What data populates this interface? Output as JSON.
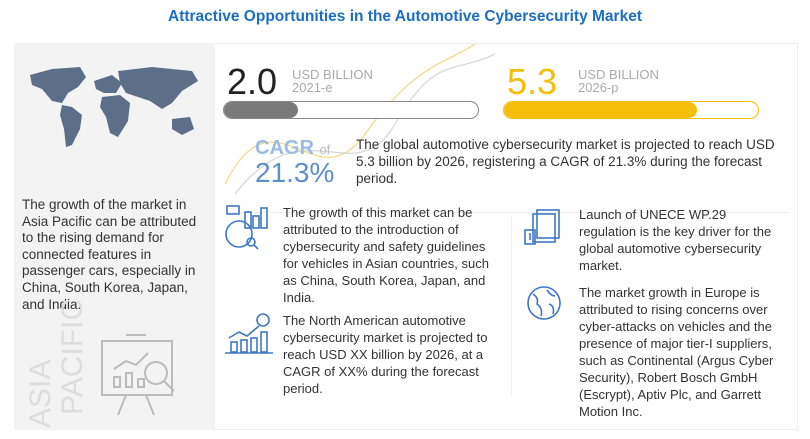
{
  "title": "Attractive Opportunities in the Automotive Cybersecurity Market",
  "left": {
    "text": "The growth of the market in Asia Pacific can be attributed to the rising demand for connected features in passenger cars, especially in China, South Korea, Japan, and India.",
    "region_word1": "ASIA",
    "region_word2": "PACIFIC"
  },
  "stats": [
    {
      "value": "2.0",
      "unit": "USD BILLION",
      "year": "2021-e",
      "fill_percent": 29,
      "color": "#7a7a7a"
    },
    {
      "value": "5.3",
      "unit": "USD BILLION",
      "year": "2026-p",
      "fill_percent": 76,
      "color": "#f5be0b"
    }
  ],
  "cagr": {
    "label": "CAGR",
    "of": "of",
    "value": "21.3%",
    "color": "#5b8fc9"
  },
  "summary": "The global automotive cybersecurity market is projected to reach USD 5.3 billion by 2026, registering a CAGR of 21.3% during the forecast period.",
  "insights": [
    {
      "icon": "analytics-report-icon",
      "text": "The growth of this market can be attributed to the introduction of cybersecurity and safety guidelines for vehicles in Asian countries, such as China, South Korea, Japan, and India."
    },
    {
      "icon": "growth-chart-dollar-icon",
      "text": "The North American automotive cybersecurity market is projected to reach USD XX billion by 2026, at a CAGR of XX% during the forecast period."
    },
    {
      "icon": "regulation-document-icon",
      "text": "Launch of UNECE WP.29 regulation is the key driver for the global automotive cybersecurity market."
    },
    {
      "icon": "globe-icon",
      "text": "The market growth in Europe is attributed to rising concerns over cyber-attacks on vehicles and the presence of major tier-I suppliers, such as Continental (Argus Cyber Security), Robert Bosch GmbH (Escrypt), Aptiv Plc, and Garrett Motion Inc."
    }
  ]
}
